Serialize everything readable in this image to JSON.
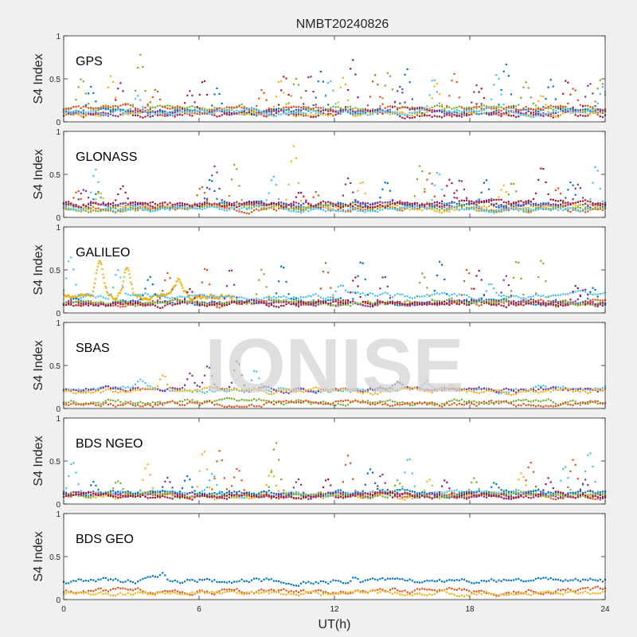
{
  "chart_data": {
    "type": "scatter",
    "title": "NMBT20240826",
    "xlabel": "UT(h)",
    "ylabel": "S4 Index",
    "xlim": [
      0,
      24
    ],
    "xticks": [
      0,
      6,
      12,
      18,
      24
    ],
    "xtick_labels": [
      "0",
      "6",
      "12",
      "18",
      "24"
    ],
    "ylim": [
      0,
      1
    ],
    "yticks": [
      0,
      0.5,
      1
    ],
    "ytick_labels": [
      "0",
      "0.5",
      "1"
    ],
    "grid": false,
    "watermark": "IONISE",
    "series_colors": [
      "#0072bd",
      "#d95319",
      "#edb120",
      "#7e2f8e",
      "#77ac30",
      "#4dbeee",
      "#a2142f"
    ],
    "panels": [
      {
        "name": "GPS",
        "tracks": [
          {
            "color_index": 6,
            "baseline": 0.08,
            "t_start": 0,
            "t_end": 24,
            "peaks": [
              [
                2.5,
                0.45
              ],
              [
                6.2,
                0.5
              ],
              [
                9.8,
                0.55
              ],
              [
                12.8,
                0.7
              ],
              [
                18.5,
                0.4
              ],
              [
                22.3,
                0.5
              ]
            ]
          },
          {
            "color_index": 4,
            "baseline": 0.15,
            "t_start": 0,
            "t_end": 24,
            "peaks": [
              [
                0.8,
                0.5
              ],
              [
                3.4,
                0.8
              ],
              [
                10.3,
                0.5
              ],
              [
                14.4,
                0.6
              ],
              [
                20.5,
                0.45
              ],
              [
                23.8,
                0.5
              ]
            ]
          },
          {
            "color_index": 0,
            "baseline": 0.12,
            "t_start": 0,
            "t_end": 24,
            "peaks": [
              [
                1.2,
                0.4
              ],
              [
                6.8,
                0.45
              ],
              [
                11.4,
                0.55
              ],
              [
                15.2,
                0.6
              ],
              [
                19.6,
                0.65
              ],
              [
                21.6,
                0.45
              ]
            ]
          },
          {
            "color_index": 1,
            "baseline": 0.15,
            "t_start": 0,
            "t_end": 24,
            "peaks": [
              [
                4.1,
                0.35
              ],
              [
                8.8,
                0.4
              ],
              [
                13.8,
                0.55
              ],
              [
                17.3,
                0.6
              ],
              [
                22.6,
                0.4
              ]
            ]
          },
          {
            "color_index": 2,
            "baseline": 0.1,
            "t_start": 0,
            "t_end": 24,
            "peaks": [
              [
                2.1,
                0.55
              ],
              [
                9.6,
                0.5
              ],
              [
                12.4,
                0.55
              ],
              [
                16.5,
                0.45
              ],
              [
                21.2,
                0.3
              ]
            ]
          },
          {
            "color_index": 3,
            "baseline": 0.12,
            "t_start": 0,
            "t_end": 24,
            "peaks": [
              [
                5.6,
                0.35
              ],
              [
                10.9,
                0.55
              ],
              [
                14.9,
                0.4
              ],
              [
                18.3,
                0.45
              ],
              [
                23.3,
                0.45
              ]
            ]
          },
          {
            "color_index": 5,
            "baseline": 0.12,
            "t_start": 0,
            "t_end": 24,
            "peaks": [
              [
                3.3,
                0.3
              ],
              [
                11.8,
                0.5
              ],
              [
                16.4,
                0.5
              ],
              [
                19.2,
                0.55
              ],
              [
                23.9,
                0.4
              ]
            ]
          }
        ]
      },
      {
        "name": "GLONASS",
        "tracks": [
          {
            "color_index": 0,
            "baseline": 0.15,
            "t_start": 0,
            "t_end": 24,
            "peaks": [
              [
                1.5,
                0.3
              ],
              [
                6.5,
                0.45
              ],
              [
                14.3,
                0.4
              ],
              [
                18.7,
                0.45
              ],
              [
                22.5,
                0.4
              ]
            ]
          },
          {
            "color_index": 1,
            "baseline": 0.1,
            "t_start": 0,
            "t_end": 24,
            "peaks": [
              [
                0.6,
                0.3
              ],
              [
                6.1,
                0.35
              ],
              [
                11.2,
                0.3
              ],
              [
                16.2,
                0.5
              ],
              [
                21.9,
                0.35
              ]
            ]
          },
          {
            "color_index": 2,
            "baseline": 0.12,
            "t_start": 0,
            "t_end": 24,
            "peaks": [
              [
                1.6,
                0.3
              ],
              [
                10.2,
                0.8
              ],
              [
                13.2,
                0.4
              ],
              [
                19.5,
                0.35
              ]
            ]
          },
          {
            "color_index": 3,
            "baseline": 0.15,
            "t_start": 0,
            "t_end": 24,
            "peaks": [
              [
                0.9,
                0.35
              ],
              [
                6.7,
                0.6
              ],
              [
                12.6,
                0.45
              ],
              [
                17.6,
                0.45
              ],
              [
                22.8,
                0.4
              ]
            ]
          },
          {
            "color_index": 4,
            "baseline": 0.1,
            "t_start": 0,
            "t_end": 24,
            "peaks": [
              [
                7.6,
                0.6
              ],
              [
                15.8,
                0.6
              ],
              [
                19.9,
                0.4
              ]
            ]
          },
          {
            "color_index": 5,
            "baseline": 0.1,
            "t_start": 0,
            "t_end": 24,
            "peaks": [
              [
                1.4,
                0.55
              ],
              [
                9.3,
                0.45
              ],
              [
                16.6,
                0.55
              ],
              [
                23.6,
                0.6
              ]
            ]
          },
          {
            "color_index": 6,
            "baseline": 0.15,
            "t_start": 0,
            "t_end": 24,
            "peaks": [
              [
                2.6,
                0.35
              ],
              [
                10.5,
                0.3
              ],
              [
                17.1,
                0.4
              ],
              [
                21.2,
                0.55
              ]
            ]
          }
        ]
      },
      {
        "name": "GALILEO",
        "tracks": [
          {
            "color_index": 2,
            "baseline": 0.2,
            "t_start": 0,
            "t_end": 7.5,
            "peaks": [
              [
                1.6,
                0.6
              ],
              [
                2.8,
                0.55
              ],
              [
                5.1,
                0.4
              ]
            ]
          },
          {
            "color_index": 5,
            "baseline": 0.2,
            "t_start": 0,
            "t_end": 24,
            "peaks": [
              [
                0.3,
                0.7
              ],
              [
                2.4,
                0.5
              ],
              [
                12.3,
                0.3
              ],
              [
                18.9,
                0.35
              ]
            ]
          },
          {
            "color_index": 0,
            "baseline": 0.12,
            "t_start": 0,
            "t_end": 24,
            "peaks": [
              [
                3.8,
                0.4
              ],
              [
                9.7,
                0.55
              ],
              [
                13.2,
                0.6
              ],
              [
                16.7,
                0.6
              ],
              [
                23.5,
                0.3
              ]
            ]
          },
          {
            "color_index": 1,
            "baseline": 0.12,
            "t_start": 0,
            "t_end": 24,
            "peaks": [
              [
                4.6,
                0.45
              ],
              [
                6.3,
                0.55
              ],
              [
                11.6,
                0.6
              ],
              [
                17.9,
                0.55
              ]
            ]
          },
          {
            "color_index": 3,
            "baseline": 0.12,
            "t_start": 0,
            "t_end": 24,
            "peaks": [
              [
                7.4,
                0.55
              ],
              [
                14.2,
                0.45
              ],
              [
                19.6,
                0.45
              ],
              [
                23.1,
                0.3
              ]
            ]
          },
          {
            "color_index": 4,
            "baseline": 0.12,
            "t_start": 0,
            "t_end": 24,
            "peaks": [
              [
                8.8,
                0.5
              ],
              [
                15.9,
                0.45
              ],
              [
                20.1,
                0.6
              ],
              [
                21.2,
                0.65
              ]
            ]
          },
          {
            "color_index": 6,
            "baseline": 0.1,
            "t_start": 0,
            "t_end": 24,
            "peaks": [
              [
                5.6,
                0.3
              ],
              [
                12.9,
                0.4
              ],
              [
                18.4,
                0.5
              ],
              [
                22.7,
                0.3
              ]
            ]
          }
        ]
      },
      {
        "name": "SBAS",
        "tracks": [
          {
            "color_index": 5,
            "baseline": 0.22,
            "t_start": 0,
            "t_end": 24,
            "peaks": [
              [
                3.4,
                0.3
              ],
              [
                8.5,
                0.45
              ],
              [
                16.1,
                0.3
              ],
              [
                21.2,
                0.25
              ]
            ]
          },
          {
            "color_index": 3,
            "baseline": 0.22,
            "t_start": 0,
            "t_end": 24,
            "peaks": [
              [
                5.6,
                0.4
              ],
              [
                6.4,
                0.5
              ],
              [
                7.7,
                0.55
              ],
              [
                14.8,
                0.3
              ]
            ]
          },
          {
            "color_index": 2,
            "baseline": 0.2,
            "t_start": 0,
            "t_end": 24,
            "peaks": [
              [
                4.4,
                0.4
              ],
              [
                17.2,
                0.25
              ]
            ]
          },
          {
            "color_index": 4,
            "baseline": 0.07,
            "t_start": 0,
            "t_end": 24,
            "peaks": []
          },
          {
            "color_index": 1,
            "baseline": 0.05,
            "t_start": 0,
            "t_end": 24,
            "peaks": []
          }
        ]
      },
      {
        "name": "BDS NGEO",
        "tracks": [
          {
            "color_index": 2,
            "baseline": 0.1,
            "t_start": 0,
            "t_end": 24,
            "peaks": [
              [
                3.7,
                0.45
              ],
              [
                6.2,
                0.65
              ],
              [
                9.2,
                0.35
              ],
              [
                16.2,
                0.3
              ],
              [
                20.3,
                0.35
              ]
            ]
          },
          {
            "color_index": 1,
            "baseline": 0.1,
            "t_start": 0,
            "t_end": 24,
            "peaks": [
              [
                6.9,
                0.6
              ],
              [
                7.7,
                0.4
              ],
              [
                12.6,
                0.55
              ],
              [
                20.7,
                0.5
              ],
              [
                22.6,
                0.55
              ]
            ]
          },
          {
            "color_index": 5,
            "baseline": 0.12,
            "t_start": 0,
            "t_end": 24,
            "peaks": [
              [
                0.4,
                0.5
              ],
              [
                6.6,
                0.35
              ],
              [
                15.3,
                0.55
              ],
              [
                22.2,
                0.45
              ],
              [
                23.3,
                0.6
              ]
            ]
          },
          {
            "color_index": 0,
            "baseline": 0.12,
            "t_start": 0,
            "t_end": 24,
            "peaks": [
              [
                1.3,
                0.25
              ],
              [
                5.5,
                0.3
              ],
              [
                13.6,
                0.4
              ],
              [
                19.1,
                0.25
              ]
            ]
          },
          {
            "color_index": 3,
            "baseline": 0.1,
            "t_start": 0,
            "t_end": 24,
            "peaks": [
              [
                4.6,
                0.3
              ],
              [
                10.4,
                0.3
              ],
              [
                14.1,
                0.35
              ],
              [
                23.1,
                0.3
              ]
            ]
          },
          {
            "color_index": 4,
            "baseline": 0.1,
            "t_start": 0,
            "t_end": 24,
            "peaks": [
              [
                2.4,
                0.25
              ],
              [
                9.4,
                0.7
              ],
              [
                14.8,
                0.3
              ],
              [
                18.2,
                0.3
              ]
            ]
          },
          {
            "color_index": 6,
            "baseline": 0.1,
            "t_start": 0,
            "t_end": 24,
            "peaks": [
              [
                11.7,
                0.3
              ],
              [
                16.9,
                0.3
              ],
              [
                21.5,
                0.3
              ]
            ]
          }
        ]
      },
      {
        "name": "BDS GEO",
        "tracks": [
          {
            "color_index": 0,
            "baseline": 0.22,
            "t_start": 0,
            "t_end": 24,
            "peaks": [
              [
                4.4,
                0.3
              ],
              [
                6.3,
                0.26
              ],
              [
                12.9,
                0.3
              ],
              [
                17.6,
                0.2
              ]
            ]
          },
          {
            "color_index": 1,
            "baseline": 0.1,
            "t_start": 0,
            "t_end": 24,
            "peaks": []
          },
          {
            "color_index": 2,
            "baseline": 0.07,
            "t_start": 0,
            "t_end": 24,
            "peaks": []
          }
        ]
      }
    ]
  }
}
